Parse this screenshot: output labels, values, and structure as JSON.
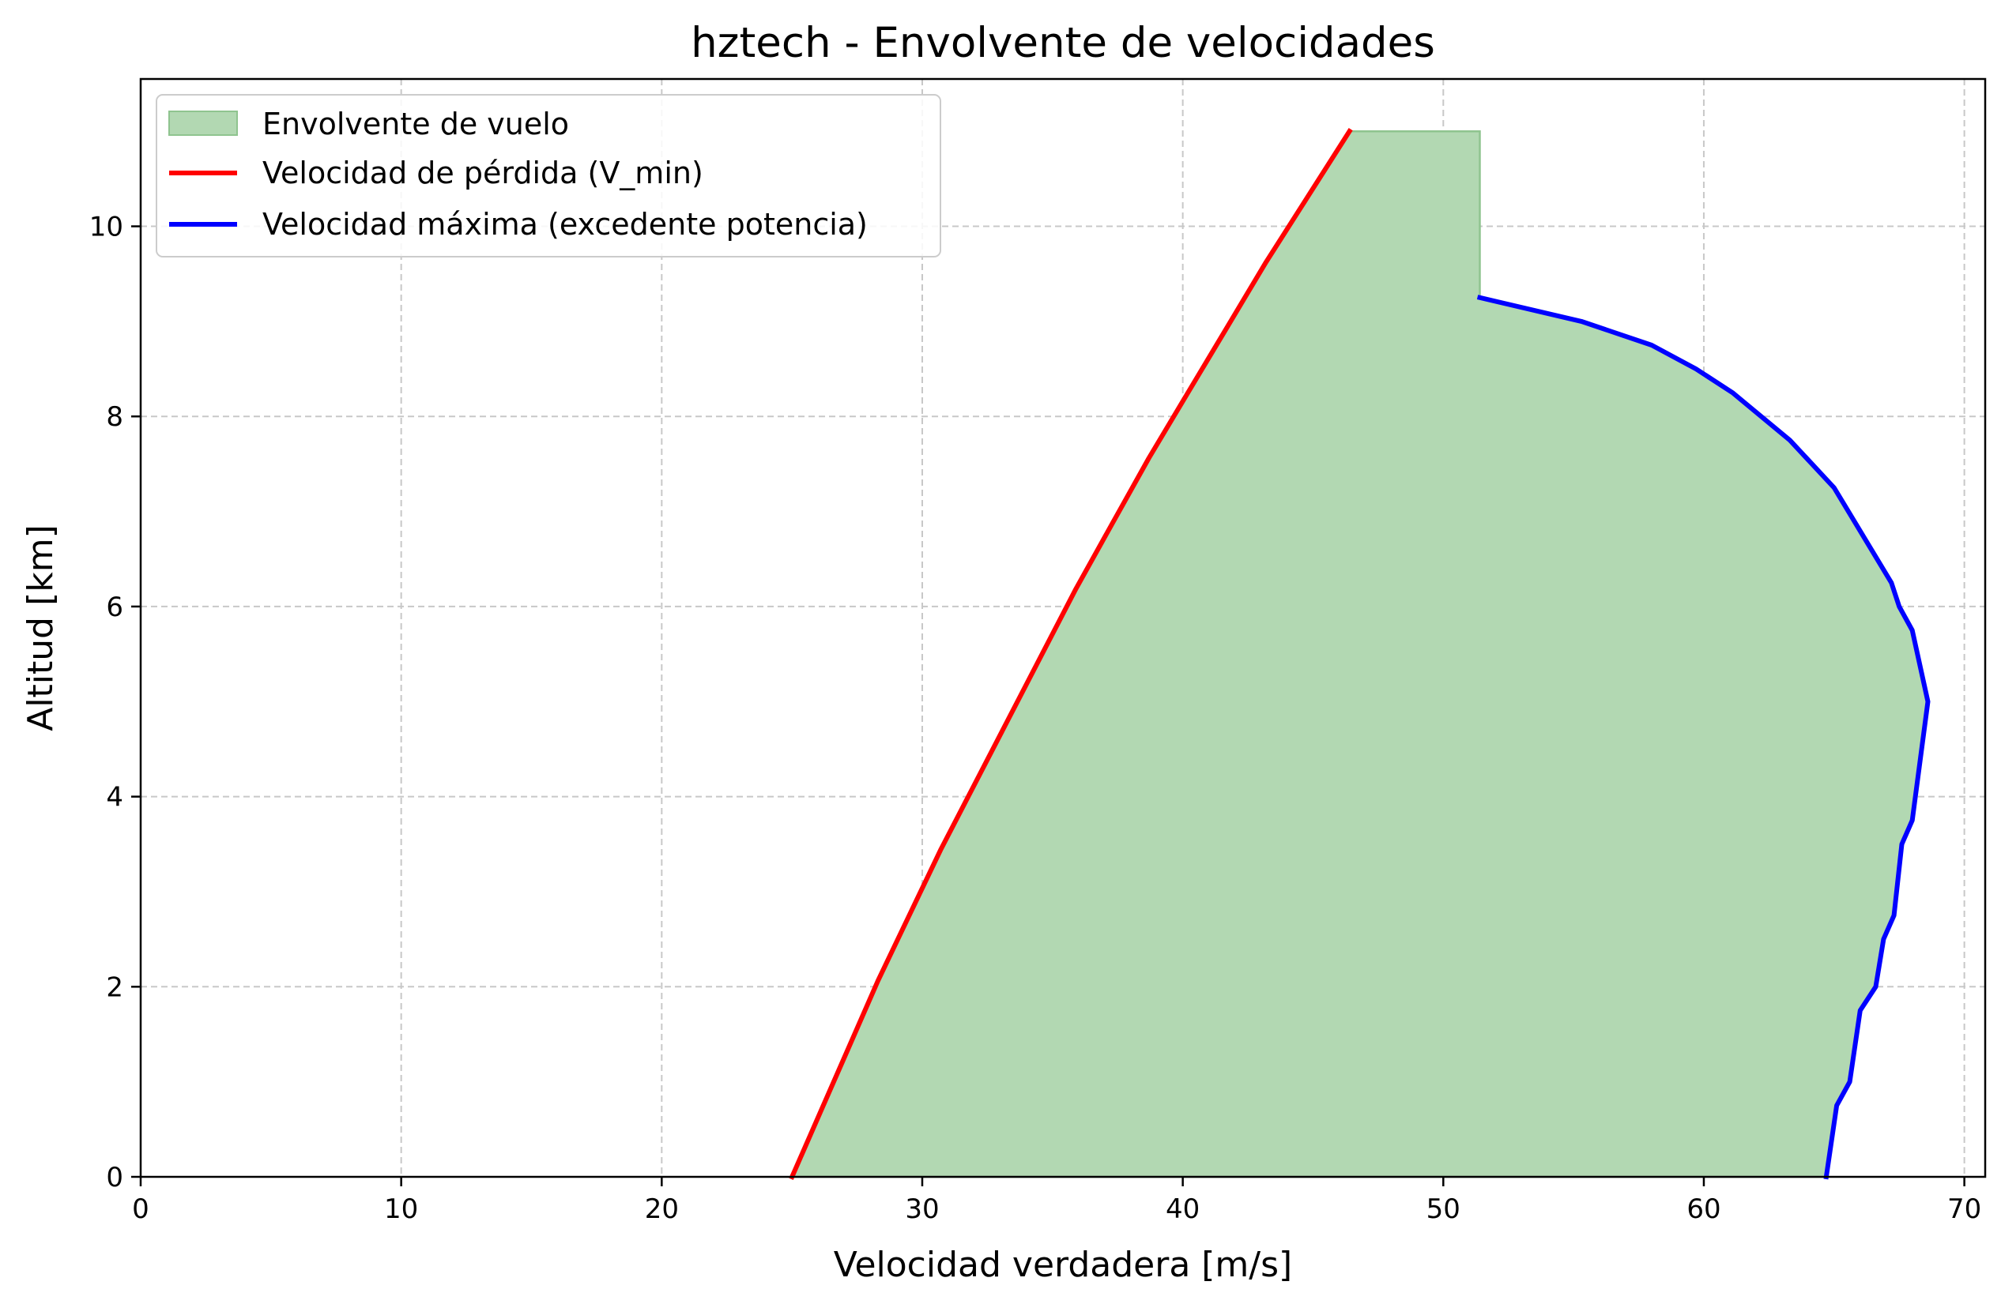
{
  "chart_data": {
    "type": "area",
    "title": "hztech - Envolvente de velocidades",
    "xlabel": "Velocidad verdadera [m/s]",
    "ylabel": "Altitud [km]",
    "xlim": [
      0,
      70.8
    ],
    "ylim": [
      0,
      11.55
    ],
    "xticks": [
      0,
      10,
      20,
      30,
      40,
      50,
      60,
      70
    ],
    "yticks": [
      0,
      2,
      4,
      6,
      8,
      10
    ],
    "grid": true,
    "legend_position": "upper-left",
    "colors": {
      "envelope_fill": "#b2d8b2",
      "envelope_edge": "#8fc48f",
      "stall": "#ff0000",
      "vmax": "#0000ff",
      "grid": "#c8c8c8"
    },
    "series": [
      {
        "name": "Envolvente de vuelo",
        "kind": "fill",
        "x": [
          25.0,
          27.2,
          29.5,
          32.0,
          34.6,
          37.3,
          40.2,
          43.2,
          46.4,
          51.4,
          51.4,
          55.3,
          58.0,
          59.7,
          61.1,
          63.3,
          65.0,
          67.2,
          67.5,
          68.0,
          68.6,
          68.0,
          67.6,
          67.3,
          66.9,
          66.6,
          66.0,
          65.6,
          65.1,
          64.7
        ],
        "y": [
          0,
          1.375,
          2.75,
          4.125,
          5.5,
          6.875,
          8.25,
          9.625,
          11.0,
          11.0,
          9.25,
          9.0,
          8.75,
          8.5,
          8.25,
          7.75,
          7.25,
          6.25,
          6.0,
          5.75,
          5.0,
          3.75,
          3.5,
          2.75,
          2.5,
          2.0,
          1.75,
          1.0,
          0.75,
          0
        ]
      },
      {
        "name": "Velocidad de pérdida (V_min)",
        "kind": "line",
        "x": [
          25.0,
          26.1,
          27.2,
          28.3,
          29.5,
          30.7,
          32.0,
          33.3,
          34.6,
          35.9,
          37.3,
          38.7,
          40.2,
          41.7,
          43.2,
          44.8,
          46.4
        ],
        "y": [
          0,
          0.6875,
          1.375,
          2.0625,
          2.75,
          3.4375,
          4.125,
          4.8125,
          5.5,
          6.1875,
          6.875,
          7.5625,
          8.25,
          8.9375,
          9.625,
          10.3125,
          11.0
        ]
      },
      {
        "name": "Velocidad máxima (excedente potencia)",
        "kind": "line",
        "x": [
          51.4,
          55.3,
          58.0,
          59.7,
          61.1,
          63.3,
          65.0,
          67.2,
          67.5,
          68.0,
          68.6,
          68.0,
          67.6,
          67.3,
          66.9,
          66.6,
          66.0,
          65.6,
          65.1,
          64.7
        ],
        "y": [
          9.25,
          9.0,
          8.75,
          8.5,
          8.25,
          7.75,
          7.25,
          6.25,
          6.0,
          5.75,
          5.0,
          3.75,
          3.5,
          2.75,
          2.5,
          2.0,
          1.75,
          1.0,
          0.75,
          0
        ]
      }
    ]
  }
}
